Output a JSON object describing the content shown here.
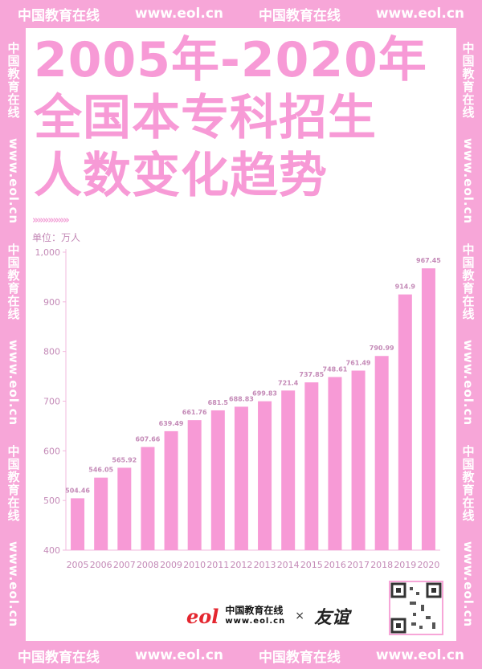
{
  "frame": {
    "top": [
      "中国教育在线",
      "www.eol.cn",
      "中国教育在线",
      "www.eol.cn"
    ],
    "bottom": [
      "中国教育在线",
      "www.eol.cn",
      "中国教育在线",
      "www.eol.cn"
    ],
    "left": [
      "中国教育在线",
      "www.eol.cn",
      "中国教育在线",
      "www.eol.cn",
      "中国教育在线",
      "www.eol.cn"
    ],
    "right": [
      "中国教育在线",
      "www.eol.cn",
      "中国教育在线",
      "www.eol.cn",
      "中国教育在线",
      "www.eol.cn"
    ]
  },
  "title_lines": [
    "2005年-2020年",
    "全国本专科招生",
    "人数变化趋势"
  ],
  "chevrons": "»»»»»»»",
  "unit_label": "单位：万人",
  "logos": {
    "eol_mark": "eol",
    "eol_cn": "中国教育在线",
    "eol_url": "www.eol.cn",
    "times": "×",
    "partner": "友谊"
  },
  "colors": {
    "bar": "#f79ad6",
    "label": "#c48ab7",
    "frame": "#f7a6d8"
  },
  "chart_data": {
    "type": "bar",
    "categories": [
      "2005",
      "2006",
      "2007",
      "2008",
      "2009",
      "2010",
      "2011",
      "2012",
      "2013",
      "2014",
      "2015",
      "2016",
      "2017",
      "2018",
      "2019",
      "2020"
    ],
    "values": [
      504.46,
      546.05,
      565.92,
      607.66,
      639.49,
      661.76,
      681.5,
      688.83,
      699.83,
      721.4,
      737.85,
      748.61,
      761.49,
      790.99,
      914.9,
      967.45
    ],
    "value_labels": [
      "504.46",
      "546.05",
      "565.92",
      "607.66",
      "639.49",
      "661.76",
      "681.5",
      "688.83",
      "699.83",
      "721.4",
      "737.85",
      "748.61",
      "761.49",
      "790.99",
      "914.9",
      "967.45"
    ],
    "ylim": [
      400,
      1000
    ],
    "yticks": [
      400,
      500,
      600,
      700,
      800,
      900,
      1000
    ],
    "ytick_labels": [
      "400",
      "500",
      "600",
      "700",
      "800",
      "900",
      "1,000"
    ],
    "ylabel": "单位：万人",
    "grid": false
  }
}
